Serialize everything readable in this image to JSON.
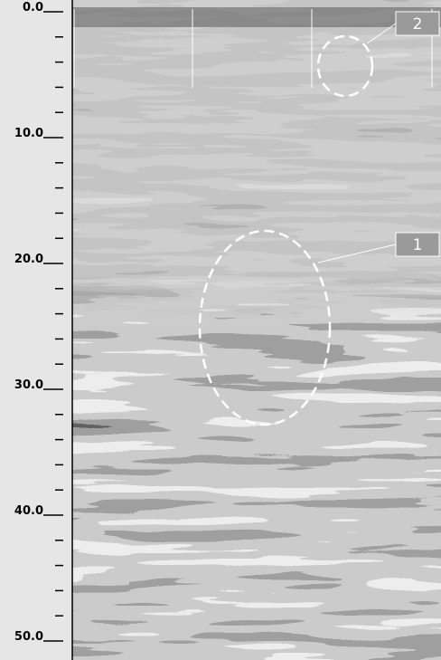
{
  "axis": {
    "labels": [
      "0.0",
      "10.0",
      "20.0",
      "30.0",
      "40.0",
      "50.0"
    ]
  },
  "annotations": [
    {
      "label": "1"
    },
    {
      "label": "2"
    }
  ]
}
